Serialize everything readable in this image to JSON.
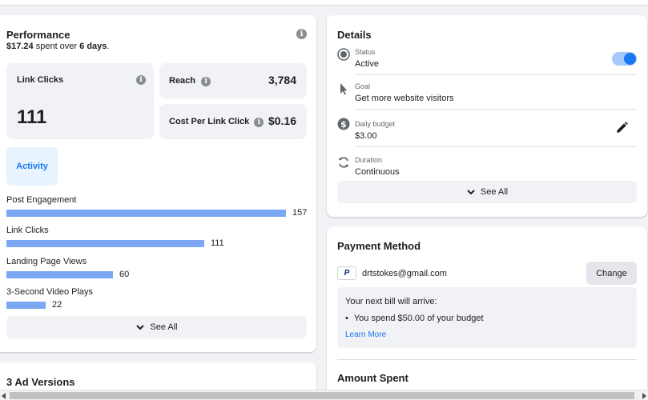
{
  "performance": {
    "title": "Performance",
    "spent_amount": "$17.24",
    "spent_middle": " spent over ",
    "spent_days": "6 days",
    "spent_end": ".",
    "link_clicks": {
      "label": "Link Clicks",
      "value": "111"
    },
    "reach": {
      "label": "Reach",
      "value": "3,784"
    },
    "cost_per_link_click": {
      "label": "Cost Per Link Click",
      "value": "$0.16"
    },
    "activity_tab": "Activity",
    "activity": [
      {
        "label": "Post Engagement",
        "value": "157",
        "amount": 157
      },
      {
        "label": "Link Clicks",
        "value": "111",
        "amount": 111
      },
      {
        "label": "Landing Page Views",
        "value": "60",
        "amount": 60
      },
      {
        "label": "3-Second Video Plays",
        "value": "22",
        "amount": 22
      }
    ],
    "see_all": "See All"
  },
  "ad_versions": {
    "title": "3 Ad Versions"
  },
  "details": {
    "title": "Details",
    "status": {
      "key": "Status",
      "value": "Active",
      "toggle_on": true
    },
    "goal": {
      "key": "Goal",
      "value": "Get more website visitors"
    },
    "daily_budget": {
      "key": "Daily budget",
      "value": "$3.00"
    },
    "duration": {
      "key": "Duration",
      "value": "Continuous"
    },
    "see_all": "See All"
  },
  "payment": {
    "title": "Payment Method",
    "paypal_letter": "P",
    "email": "drtstokes@gmail.com",
    "change_label": "Change",
    "bill_title": "Your next bill will arrive:",
    "bill_bullet": "You spend $50.00 of your budget",
    "learn_more": "Learn More"
  },
  "amount_spent": {
    "title": "Amount Spent"
  },
  "colors": {
    "accent": "#1877f2",
    "bar": "#7ca8f3",
    "panel": "#f0f2f5"
  }
}
